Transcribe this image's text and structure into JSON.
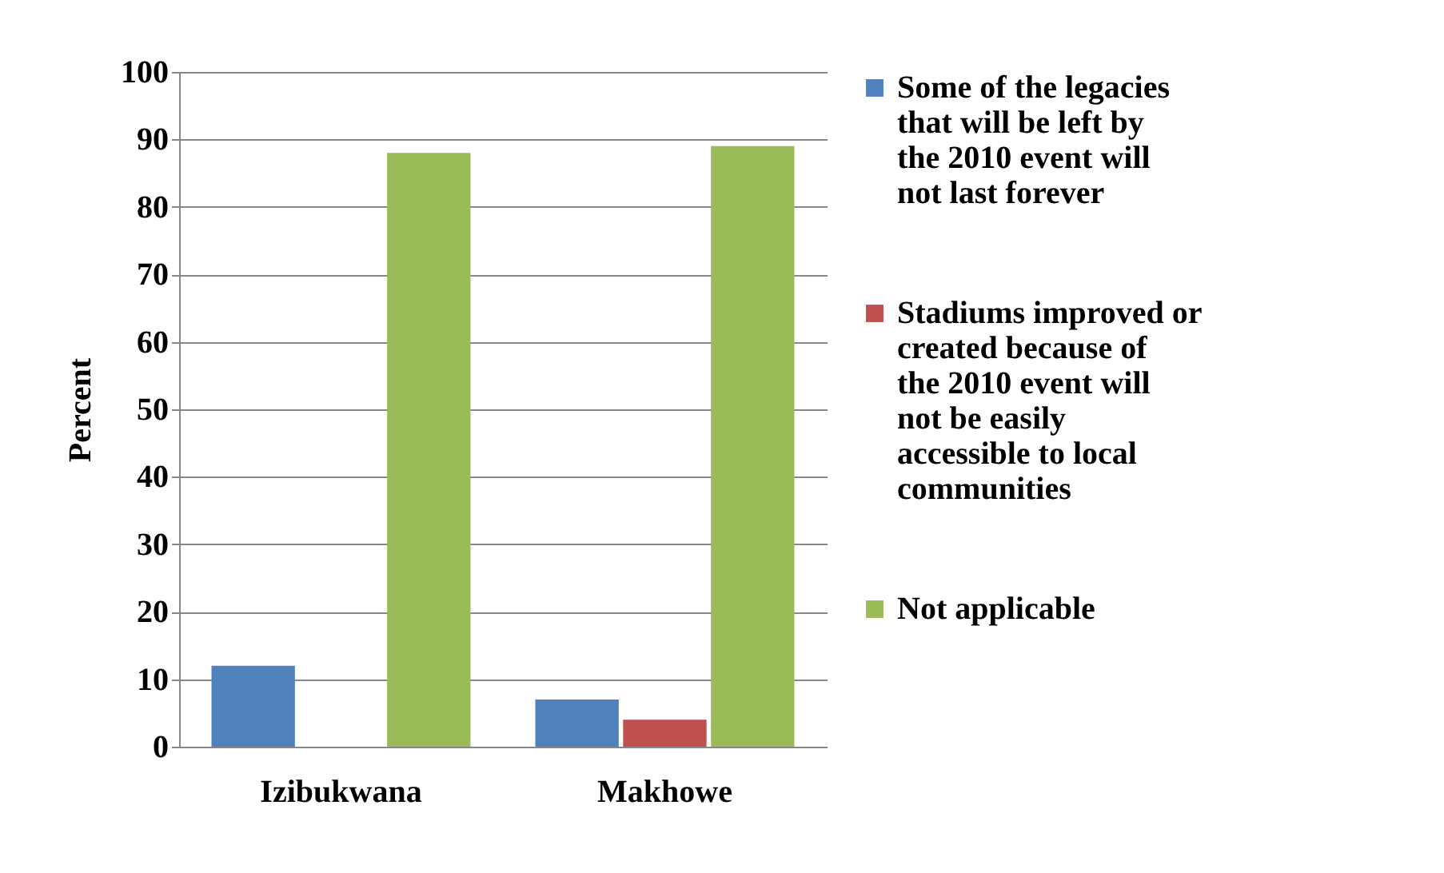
{
  "chart_data": {
    "type": "bar",
    "ylabel": "Percent",
    "categories": [
      "Izibukwana",
      "Makhowe"
    ],
    "series": [
      {
        "name": "Some of the legacies that will be left by the 2010 event will not last forever",
        "color": "#4f81bd",
        "values": [
          12,
          7
        ]
      },
      {
        "name": "Stadiums improved or created because of the 2010 event will not be easily accessible to local communities",
        "color": "#c0504d",
        "values": [
          0,
          4
        ]
      },
      {
        "name": "Not applicable",
        "color": "#9bbb59",
        "values": [
          88,
          89
        ]
      }
    ],
    "ylim": [
      0,
      100
    ],
    "yticks": [
      0,
      10,
      20,
      30,
      40,
      50,
      60,
      70,
      80,
      90,
      100
    ],
    "grid": "y",
    "legend": "right"
  }
}
